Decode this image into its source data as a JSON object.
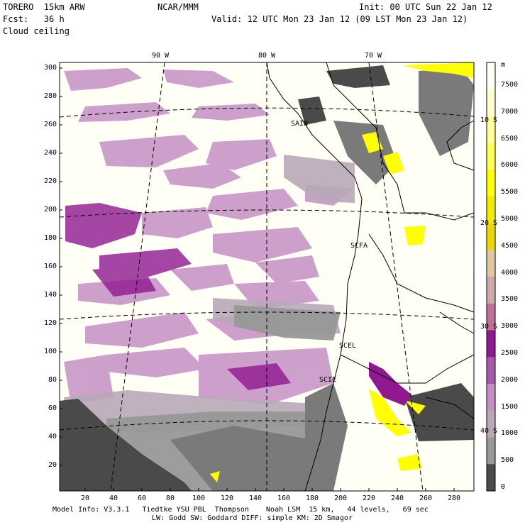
{
  "header": {
    "model": "TORERO  15km ARW",
    "org": "NCAR/MMM",
    "init": "Init: 00 UTC Sun 22 Jan 12",
    "fcst": "Fcst:   36 h",
    "valid": "Valid: 12 UTC Mon 23 Jan 12 (09 LST Mon 23 Jan 12)",
    "field": "Cloud ceiling"
  },
  "axes": {
    "x_ticks": [
      "20",
      "40",
      "60",
      "80",
      "100",
      "120",
      "140",
      "160",
      "180",
      "200",
      "220",
      "240",
      "260",
      "280"
    ],
    "y_ticks": [
      "300",
      "280",
      "260",
      "240",
      "220",
      "200",
      "180",
      "160",
      "140",
      "120",
      "100",
      "80",
      "60",
      "40",
      "20"
    ],
    "lon_labels": [
      "90 W",
      "80 W",
      "70 W"
    ],
    "lat_labels": [
      "10 S",
      "20 S",
      "30 S",
      "40 S"
    ]
  },
  "stations": [
    "SAIN",
    "SCFA",
    "SCEL",
    "SCIE"
  ],
  "colorbar": {
    "unit": "m",
    "labels": [
      "7500",
      "7000",
      "6500",
      "6000",
      "5500",
      "5000",
      "4500",
      "4000",
      "3500",
      "3000",
      "2500",
      "2000",
      "1500",
      "1000",
      "500",
      "0"
    ],
    "colors": [
      "#fffff5",
      "#ffffd0",
      "#ffff9a",
      "#ffff55",
      "#ffff00",
      "#f2ec00",
      "#e8d800",
      "#e0c8a0",
      "#d0a8a8",
      "#c07098",
      "#901890",
      "#a858a8",
      "#c490c4",
      "#b8a8b8",
      "#989898",
      "#4a4a4a"
    ]
  },
  "footer": {
    "line1": "Model Info: V3.3.1   Tiedtke YSU PBL  Thompson    Noah LSM  15 km,   44 levels,   69 sec",
    "line2": "LW: Godd SW: Goddard DIFF: simple KM: 2D Smagor"
  }
}
